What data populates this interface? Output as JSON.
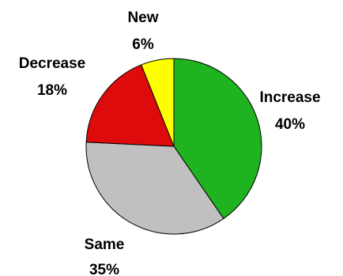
{
  "chart_data": {
    "type": "pie",
    "title": "",
    "slices": [
      {
        "label": "Increase",
        "percent_label": "40%",
        "value": 40,
        "color": "#1fb31f"
      },
      {
        "label": "Same",
        "percent_label": "35%",
        "value": 35,
        "color": "#c0c0c0"
      },
      {
        "label": "Decrease",
        "percent_label": "18%",
        "value": 18,
        "color": "#dd0b0b"
      },
      {
        "label": "New",
        "percent_label": "6%",
        "value": 6,
        "color": "#ffff00"
      }
    ],
    "start": "12 o'clock",
    "direction": "clockwise",
    "legend": "none"
  }
}
